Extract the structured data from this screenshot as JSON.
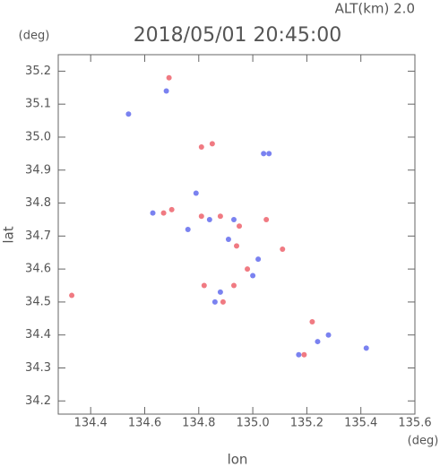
{
  "chart_data": {
    "type": "scatter",
    "title": "2018/05/01 20:45:00",
    "subtitle": "ALT(km) 2.0",
    "x_label": "lon",
    "y_label": "lat",
    "x_unit": "(deg)",
    "y_unit": "(deg)",
    "xlim": [
      134.28,
      135.6
    ],
    "ylim": [
      34.16,
      35.25
    ],
    "xticks": [
      134.4,
      134.6,
      134.8,
      {
        "value": 135,
        "label": "135.0"
      },
      135.2,
      135.4,
      135.6
    ],
    "yticks": [
      34.2,
      34.3,
      34.4,
      34.5,
      34.6,
      34.7,
      34.8,
      34.9,
      {
        "value": 35,
        "label": "35.0"
      },
      35.1,
      35.2
    ],
    "series": [
      {
        "color": "#f07a82",
        "x": [
          134.33,
          134.69,
          134.81,
          134.85,
          134.67,
          134.81,
          134.88,
          134.95,
          135.05,
          134.94,
          134.98,
          134.82,
          134.93,
          134.89,
          135.22,
          135.19,
          135.11,
          134.7
        ],
        "y": [
          34.52,
          35.18,
          34.97,
          34.98,
          34.77,
          34.76,
          34.76,
          34.73,
          34.75,
          34.67,
          34.6,
          34.55,
          34.55,
          34.5,
          34.44,
          34.34,
          34.66,
          34.78
        ]
      },
      {
        "color": "#7a82f0",
        "x": [
          134.68,
          134.54,
          135.04,
          135.06,
          134.63,
          134.79,
          134.84,
          134.93,
          134.91,
          135.02,
          134.88,
          134.86,
          135.24,
          135.17,
          135.28,
          135.42,
          134.76,
          135.0
        ],
        "y": [
          35.14,
          35.07,
          34.95,
          34.95,
          34.77,
          34.83,
          34.75,
          34.75,
          34.69,
          34.63,
          34.53,
          34.5,
          34.38,
          34.34,
          34.4,
          34.36,
          34.72,
          34.58
        ]
      }
    ]
  }
}
